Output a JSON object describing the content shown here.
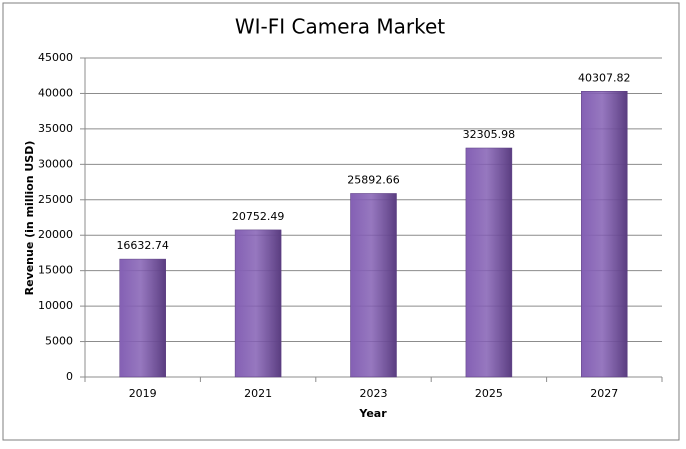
{
  "chart_data": {
    "type": "bar",
    "title": "WI-FI Camera Market",
    "x_label": "Year",
    "y_label": "Revenue (in million USD)",
    "categories": [
      "2019",
      "2021",
      "2023",
      "2025",
      "2027"
    ],
    "values": [
      16632.74,
      20752.49,
      25892.66,
      32305.98,
      40307.82
    ],
    "color": "#8460b4",
    "ylim": [
      0,
      45000
    ],
    "yticks": [
      0,
      5000,
      10000,
      15000,
      20000,
      25000,
      30000,
      35000,
      40000,
      45000
    ],
    "grid": true
  }
}
